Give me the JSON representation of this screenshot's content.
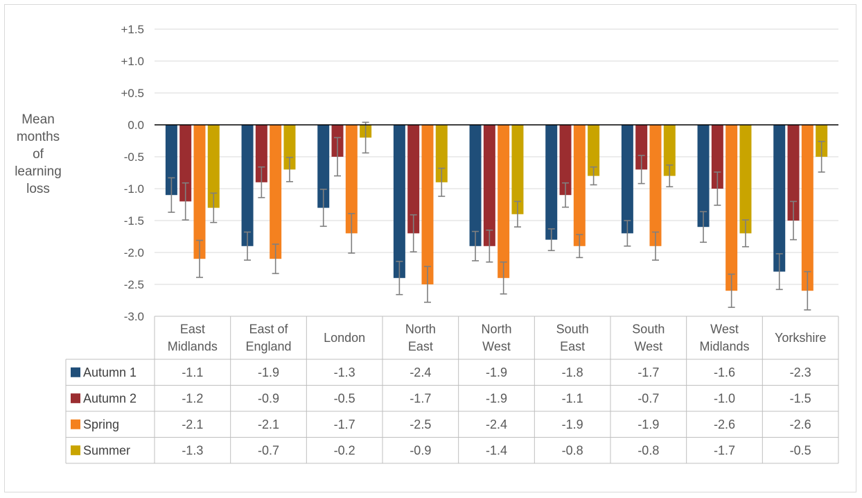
{
  "chart_data": {
    "type": "bar",
    "ylabel": [
      "Mean",
      "months",
      "of",
      "learning",
      "loss"
    ],
    "ylim": [
      -3.0,
      1.5
    ],
    "yticks": [
      "+1.5",
      "+1.0",
      "+0.5",
      "0.0",
      "-0.5",
      "-1.0",
      "-1.5",
      "-2.0",
      "-2.5",
      "-3.0"
    ],
    "ytick_values": [
      1.5,
      1.0,
      0.5,
      0.0,
      -0.5,
      -1.0,
      -1.5,
      -2.0,
      -2.5,
      -3.0
    ],
    "grid": true,
    "legend_placement": "data-table",
    "categories": [
      [
        "East",
        "Midlands"
      ],
      [
        "East of",
        "England"
      ],
      [
        "London"
      ],
      [
        "North",
        "East"
      ],
      [
        "North",
        "West"
      ],
      [
        "South",
        "East"
      ],
      [
        "South",
        "West"
      ],
      [
        "West",
        "Midlands"
      ],
      [
        "Yorkshire"
      ]
    ],
    "series": [
      {
        "name": "Autumn 1",
        "color": "#1f4e79",
        "values": [
          -1.1,
          -1.9,
          -1.3,
          -2.4,
          -1.9,
          -1.8,
          -1.7,
          -1.6,
          -2.3
        ],
        "labels": [
          "-1.1",
          "-1.9",
          "-1.3",
          "-2.4",
          "-1.9",
          "-1.8",
          "-1.7",
          "-1.6",
          "-2.3"
        ],
        "error": [
          0.27,
          0.22,
          0.29,
          0.26,
          0.23,
          0.17,
          0.2,
          0.24,
          0.28
        ]
      },
      {
        "name": "Autumn 2",
        "color": "#9b2d30",
        "values": [
          -1.2,
          -0.9,
          -0.5,
          -1.7,
          -1.9,
          -1.1,
          -0.7,
          -1.0,
          -1.5
        ],
        "labels": [
          "-1.2",
          "-0.9",
          "-0.5",
          "-1.7",
          "-1.9",
          "-1.1",
          "-0.7",
          "-1.0",
          "-1.5"
        ],
        "error": [
          0.29,
          0.24,
          0.3,
          0.29,
          0.25,
          0.19,
          0.22,
          0.26,
          0.3
        ]
      },
      {
        "name": "Spring",
        "color": "#f4811f",
        "values": [
          -2.1,
          -2.1,
          -1.7,
          -2.5,
          -2.4,
          -1.9,
          -1.9,
          -2.6,
          -2.6
        ],
        "labels": [
          "-2.1",
          "-2.1",
          "-1.7",
          "-2.5",
          "-2.4",
          "-1.9",
          "-1.9",
          "-2.6",
          "-2.6"
        ],
        "error": [
          0.29,
          0.23,
          0.31,
          0.28,
          0.25,
          0.18,
          0.22,
          0.26,
          0.3
        ]
      },
      {
        "name": "Summer",
        "color": "#c9a400",
        "values": [
          -1.3,
          -0.7,
          -0.2,
          -0.9,
          -1.4,
          -0.8,
          -0.8,
          -1.7,
          -0.5
        ],
        "labels": [
          "-1.3",
          "-0.7",
          "-0.2",
          "-0.9",
          "-1.4",
          "-0.8",
          "-0.8",
          "-1.7",
          "-0.5"
        ],
        "error": [
          0.23,
          0.19,
          0.24,
          0.22,
          0.2,
          0.14,
          0.17,
          0.21,
          0.24
        ]
      }
    ]
  }
}
